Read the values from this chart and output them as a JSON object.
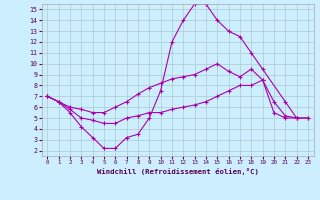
{
  "xlabel": "Windchill (Refroidissement éolien,°C)",
  "background_color": "#cceeff",
  "line_color": "#aa00aa",
  "xlim": [
    -0.5,
    23.5
  ],
  "ylim": [
    1.5,
    15.5
  ],
  "xticks": [
    0,
    1,
    2,
    3,
    4,
    5,
    6,
    7,
    8,
    9,
    10,
    11,
    12,
    13,
    14,
    15,
    16,
    17,
    18,
    19,
    20,
    21,
    22,
    23
  ],
  "yticks": [
    2,
    3,
    4,
    5,
    6,
    7,
    8,
    9,
    10,
    11,
    12,
    13,
    14,
    15
  ],
  "line0_x": [
    0,
    1,
    2,
    3,
    4,
    5,
    6,
    7,
    8,
    9,
    10,
    11,
    12,
    13,
    14,
    15,
    16,
    17,
    18,
    19,
    21,
    22
  ],
  "line0_y": [
    7.0,
    6.5,
    5.5,
    4.2,
    3.2,
    2.2,
    2.2,
    3.2,
    3.5,
    5.0,
    7.5,
    12.0,
    14.0,
    15.5,
    15.5,
    14.0,
    13.0,
    12.5,
    11.0,
    9.5,
    6.5,
    5.0
  ],
  "line1_x": [
    0,
    1,
    2,
    3,
    4,
    5,
    6,
    7,
    8,
    9,
    10,
    11,
    12,
    13,
    14,
    15,
    16,
    17,
    18,
    19,
    20,
    21,
    22,
    23
  ],
  "line1_y": [
    7.0,
    6.5,
    6.0,
    5.8,
    5.5,
    5.5,
    6.0,
    6.5,
    7.2,
    7.8,
    8.2,
    8.6,
    8.8,
    9.0,
    9.5,
    10.0,
    9.3,
    8.8,
    9.5,
    8.5,
    6.5,
    5.2,
    5.0,
    5.0
  ],
  "line2_x": [
    0,
    1,
    2,
    3,
    4,
    5,
    6,
    7,
    8,
    9,
    10,
    11,
    12,
    13,
    14,
    15,
    16,
    17,
    18,
    19,
    20,
    21,
    22,
    23
  ],
  "line2_y": [
    7.0,
    6.5,
    5.8,
    5.0,
    4.8,
    4.5,
    4.5,
    5.0,
    5.2,
    5.5,
    5.5,
    5.8,
    6.0,
    6.2,
    6.5,
    7.0,
    7.5,
    8.0,
    8.0,
    8.5,
    5.5,
    5.0,
    5.0,
    5.0
  ]
}
